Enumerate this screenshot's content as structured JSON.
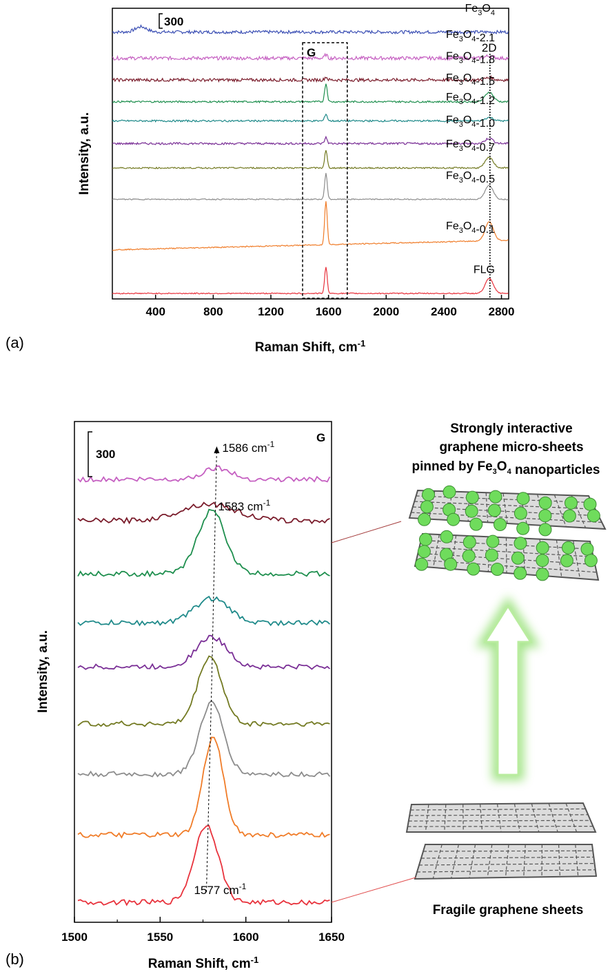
{
  "panel_a_label": "(a)",
  "panel_b_label": "(b)",
  "illustration": {
    "top_caption_lines": [
      "Strongly interactive",
      "graphene micro-sheets",
      "pinned by Fe3O4 nanoparticles"
    ],
    "bottom_caption": "Fragile graphene sheets",
    "arrow_color": "#7ed957",
    "sheet_color": "#555555",
    "particle_color": "#6fdc5c"
  },
  "chart_data": [
    {
      "id": "a",
      "type": "line",
      "xlabel": "Raman Shift, cm-1",
      "ylabel": "Intensity, a.u.",
      "xlim": [
        100,
        2850
      ],
      "xticks": [
        400,
        800,
        1200,
        1600,
        2000,
        2400,
        2800
      ],
      "scale_bar": "300",
      "box_label": "G",
      "box_range": [
        1420,
        1730
      ],
      "marker_label": "2D",
      "marker_x": 2720,
      "series": [
        {
          "name": "Fe3O4",
          "color": "#3b4fb4",
          "offset": 3000,
          "g": 0,
          "d2": 0,
          "broad": 18
        },
        {
          "name": "Fe3O4-2.1",
          "color": "#c55fc1",
          "offset": 2700,
          "g": 40,
          "d2": 25,
          "broad": 20
        },
        {
          "name": "Fe3O4-1.8",
          "color": "#7a1c2b",
          "offset": 2450,
          "g": 35,
          "d2": 25,
          "broad": 18
        },
        {
          "name": "Fe3O4-1.5",
          "color": "#1e8f4e",
          "offset": 2200,
          "g": 210,
          "d2": 110,
          "broad": 10
        },
        {
          "name": "Fe3O4-1.2",
          "color": "#1f8a8a",
          "offset": 1980,
          "g": 80,
          "d2": 40,
          "broad": 10
        },
        {
          "name": "Fe3O4-1.0",
          "color": "#7a2f96",
          "offset": 1720,
          "g": 70,
          "d2": 60,
          "broad": 12
        },
        {
          "name": "Fe3O4-0.7",
          "color": "#737a22",
          "offset": 1440,
          "g": 200,
          "d2": 120,
          "broad": 8
        },
        {
          "name": "Fe3O4-0.5",
          "color": "#8c8c8c",
          "offset": 1080,
          "g": 300,
          "d2": 160,
          "broad": 6
        },
        {
          "name": "Fe3O4-0.1",
          "color": "#f07c28",
          "offset": 500,
          "g": 500,
          "d2": 220,
          "broad": 6
        },
        {
          "name": "FLG",
          "color": "#e8323c",
          "offset": 0,
          "g": 300,
          "d2": 170,
          "broad": 6
        }
      ]
    },
    {
      "id": "b",
      "type": "line",
      "xlabel": "Raman Shift, cm-1",
      "ylabel": "Intensity, a.u.",
      "xlim": [
        1500,
        1650
      ],
      "xticks": [
        1500,
        1550,
        1600,
        1650
      ],
      "scale_bar": "300",
      "corner_label": "G",
      "annotations": [
        "1586 cm-1",
        "1583 cm-1",
        "1577 cm-1"
      ],
      "series": [
        {
          "name": "Fe3O4-2.1",
          "color": "#c55fc1",
          "offset": 3270,
          "peak": 1583,
          "height": 90,
          "width": 8
        },
        {
          "name": "Fe3O4-1.8",
          "color": "#7a1c2b",
          "offset": 2950,
          "peak": 1578,
          "height": 130,
          "width": 16
        },
        {
          "name": "Fe3O4-1.5",
          "color": "#1e8f4e",
          "offset": 2540,
          "peak": 1580,
          "height": 490,
          "width": 8
        },
        {
          "name": "Fe3O4-1.2",
          "color": "#1f8a8a",
          "offset": 2160,
          "peak": 1580,
          "height": 190,
          "width": 10
        },
        {
          "name": "Fe3O4-1.0",
          "color": "#7a2f96",
          "offset": 1820,
          "peak": 1580,
          "height": 230,
          "width": 9
        },
        {
          "name": "Fe3O4-0.7",
          "color": "#737a22",
          "offset": 1380,
          "peak": 1579,
          "height": 520,
          "width": 7
        },
        {
          "name": "Fe3O4-0.5",
          "color": "#8c8c8c",
          "offset": 990,
          "peak": 1580,
          "height": 550,
          "width": 7
        },
        {
          "name": "Fe3O4-0.1",
          "color": "#f07c28",
          "offset": 520,
          "peak": 1581,
          "height": 750,
          "width": 6
        },
        {
          "name": "FLG",
          "color": "#e8323c",
          "offset": 0,
          "peak": 1577,
          "height": 600,
          "width": 7
        }
      ]
    }
  ]
}
